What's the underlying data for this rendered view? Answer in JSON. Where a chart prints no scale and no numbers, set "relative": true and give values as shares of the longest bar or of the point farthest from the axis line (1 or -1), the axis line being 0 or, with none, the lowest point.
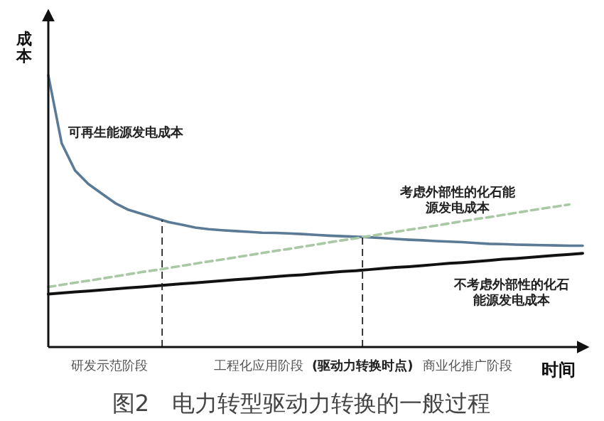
{
  "chart_data": {
    "type": "line",
    "relative": true,
    "title": "图2　电力转型驱动力转换的一般过程",
    "xlabel": "时间",
    "ylabel": "成本",
    "categories": [
      null,
      null,
      null,
      null,
      null,
      null,
      null,
      null,
      null,
      null,
      null,
      null,
      null,
      null,
      null,
      null,
      null,
      null,
      null,
      null,
      null,
      null,
      null,
      null,
      null,
      null,
      null,
      null,
      null,
      null,
      null,
      null,
      null,
      null,
      null,
      null,
      null,
      null,
      null,
      null,
      null
    ],
    "series": [
      {
        "name": "可再生能源发电成本",
        "color": "#5b7a95",
        "line_style": "solid",
        "values": [
          1.0,
          0.75,
          0.65,
          0.6,
          0.565,
          0.53,
          0.505,
          0.49,
          0.475,
          0.46,
          0.45,
          0.44,
          0.434,
          0.43,
          0.427,
          0.424,
          0.421,
          0.42,
          0.418,
          0.416,
          0.413,
          0.41,
          0.408,
          0.406,
          0.404,
          0.401,
          0.398,
          0.395,
          0.393,
          0.39,
          0.388,
          0.386,
          0.383,
          0.38,
          0.379,
          0.377,
          0.376,
          0.375,
          0.374,
          0.373,
          0.373
        ]
      },
      {
        "name": "考虑外部性的化石能源发电成本",
        "color": "#a9c9a4",
        "line_style": "dashed",
        "values": [
          0.221,
          0.229,
          0.237,
          0.244,
          0.252,
          0.26,
          0.268,
          0.276,
          0.283,
          0.291,
          0.299,
          0.307,
          0.315,
          0.322,
          0.33,
          0.338,
          0.346,
          0.354,
          0.361,
          0.369,
          0.377,
          0.385,
          0.393,
          0.4,
          0.408,
          0.416,
          0.424,
          0.432,
          0.439,
          0.447,
          0.455,
          0.463,
          0.471,
          0.478,
          0.486,
          0.494,
          0.502,
          0.51,
          0.517,
          0.525,
          null
        ]
      },
      {
        "name": "不考虑外部性的化石能源发电成本",
        "color": "#111111",
        "line_style": "solid",
        "values": [
          0.195,
          0.199,
          0.203,
          0.206,
          0.21,
          0.214,
          0.218,
          0.221,
          0.225,
          0.229,
          0.233,
          0.236,
          0.24,
          0.244,
          0.248,
          0.251,
          0.255,
          0.259,
          0.263,
          0.266,
          0.27,
          0.274,
          0.278,
          0.281,
          0.285,
          0.289,
          0.293,
          0.296,
          0.3,
          0.304,
          0.308,
          0.311,
          0.315,
          0.319,
          0.323,
          0.326,
          0.33,
          0.334,
          0.338,
          0.341,
          0.345
        ]
      }
    ],
    "annotations": [
      "研发示范阶段",
      "工程化应用阶段",
      "(驱动力转换时点)",
      "商业化推广阶段"
    ],
    "grid": false
  }
}
